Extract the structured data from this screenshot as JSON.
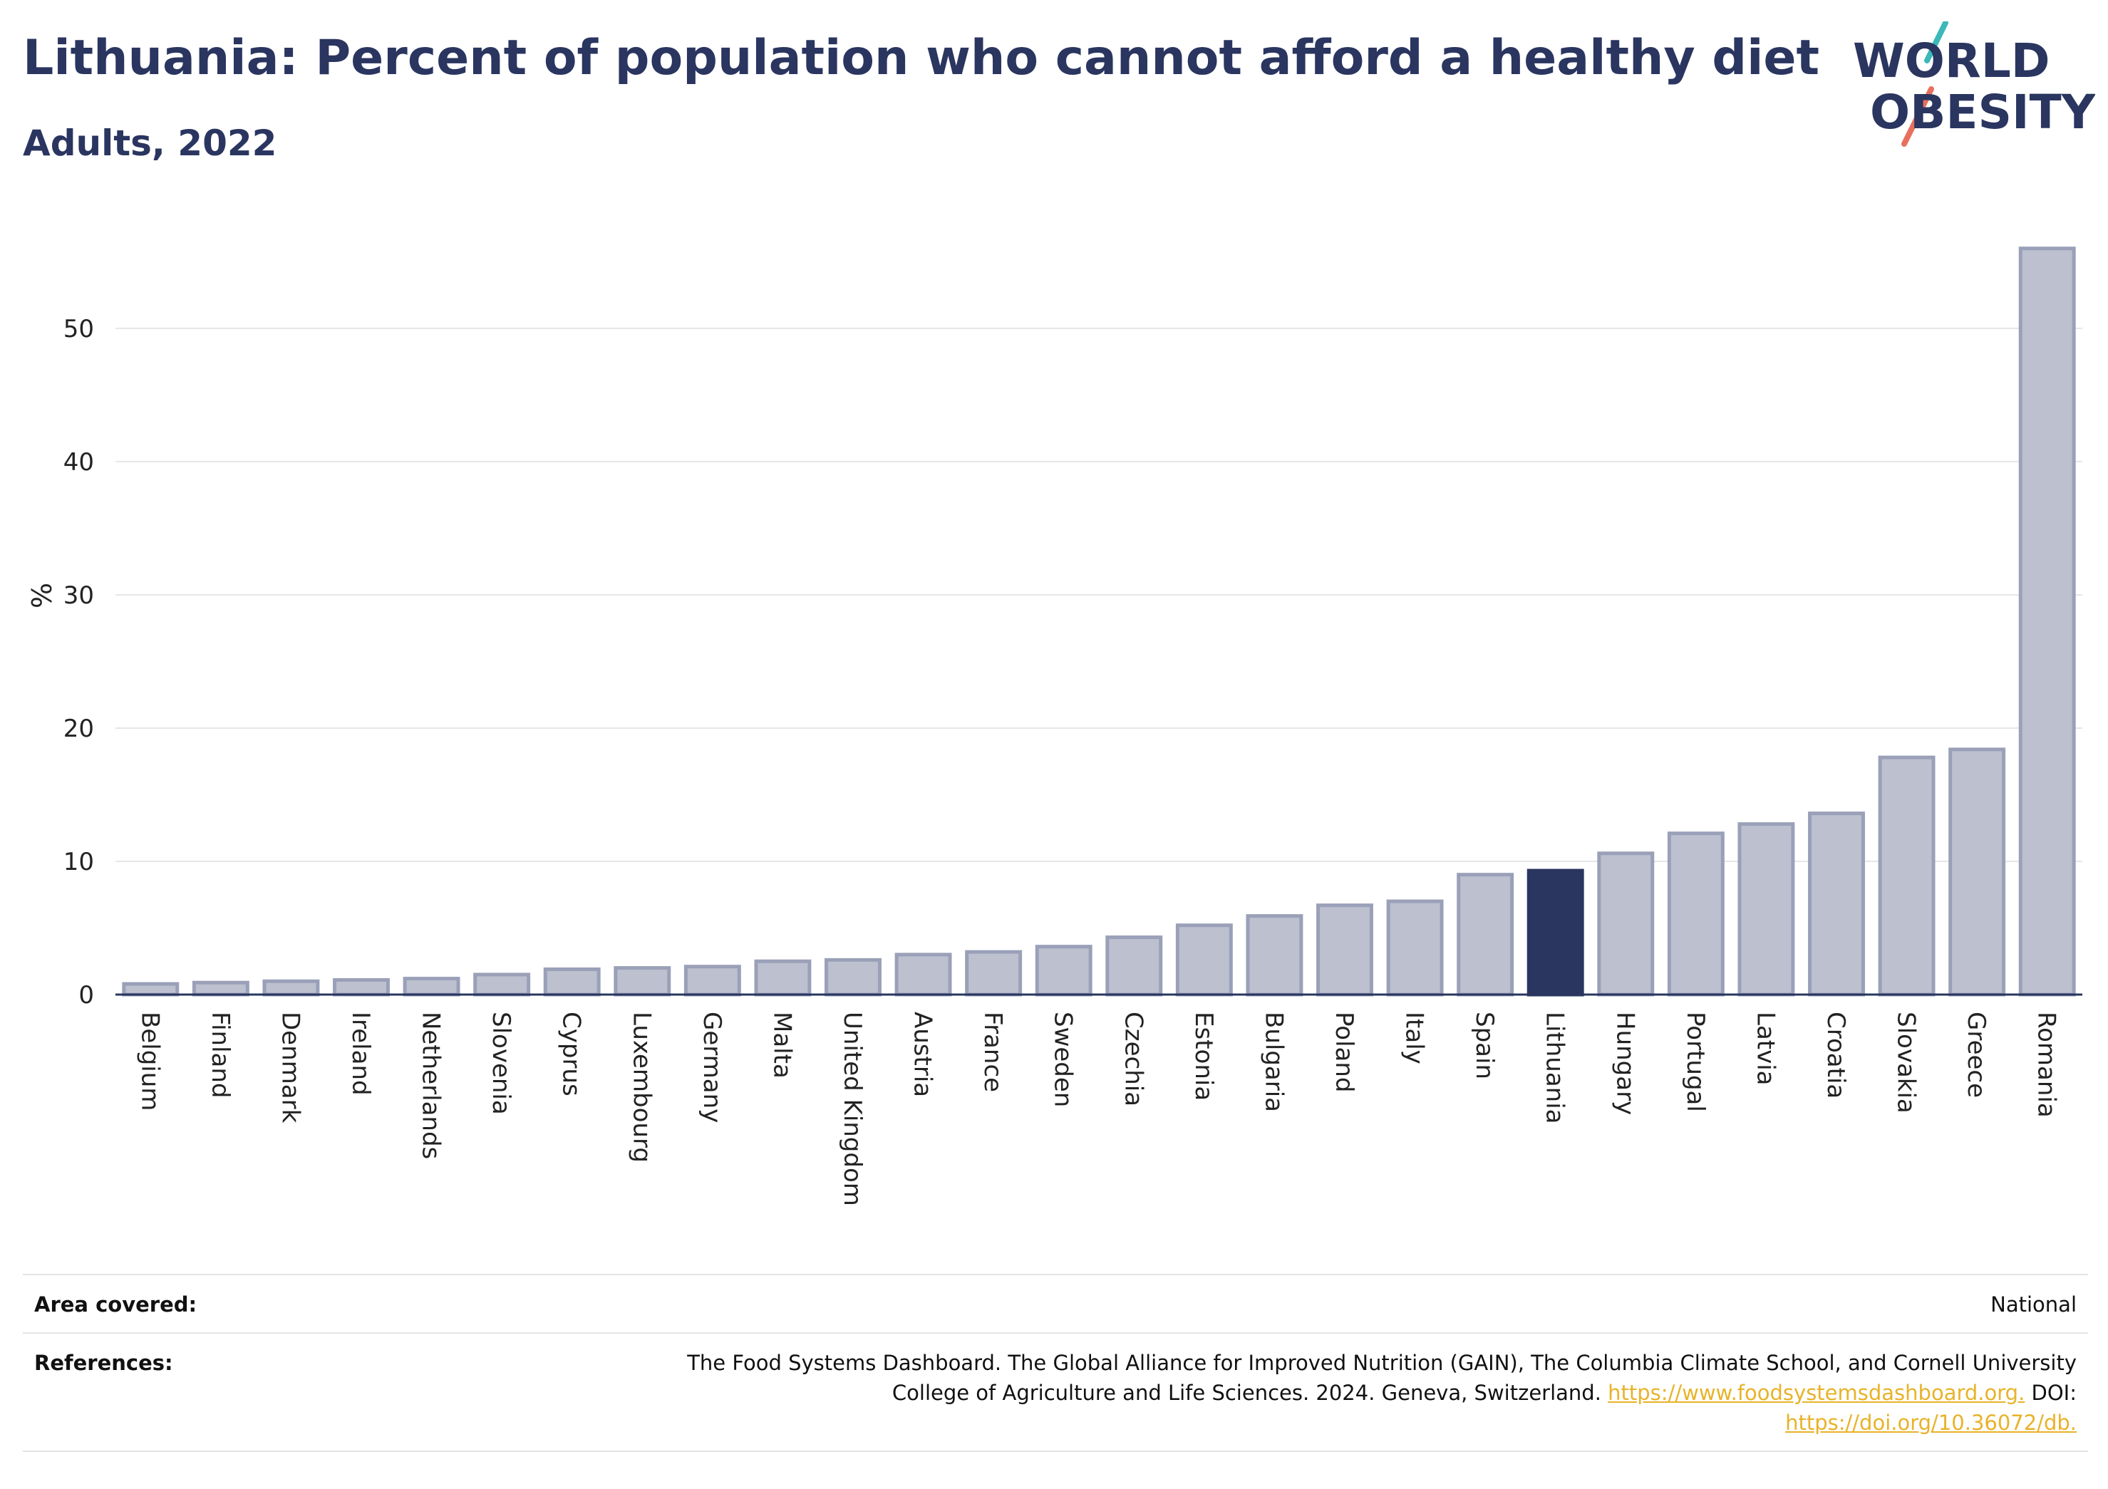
{
  "header": {
    "title": "Lithuania: Percent of population who cannot afford a healthy diet",
    "subtitle": "Adults, 2022"
  },
  "logo": {
    "line1": "WORLD",
    "line2": "OBESITY",
    "accent_teal": "#3bb8b8",
    "accent_coral": "#e8705c",
    "text_color": "#2a3560"
  },
  "chart_data": {
    "type": "bar",
    "ylabel": "%",
    "xlabel": "",
    "ylim": [
      0,
      57
    ],
    "yticks": [
      0,
      10,
      20,
      30,
      40,
      50
    ],
    "grid": true,
    "highlight": "Lithuania",
    "colors": {
      "bar": "#bcc0cf",
      "bar_edge": "#9aa0b8",
      "highlight": "#2a3560",
      "axis": "#2a3560",
      "grid": "#e6e6e6"
    },
    "categories": [
      "Belgium",
      "Finland",
      "Denmark",
      "Ireland",
      "Netherlands",
      "Slovenia",
      "Cyprus",
      "Luxembourg",
      "Germany",
      "Malta",
      "United Kingdom",
      "Austria",
      "France",
      "Sweden",
      "Czechia",
      "Estonia",
      "Bulgaria",
      "Poland",
      "Italy",
      "Spain",
      "Lithuania",
      "Hungary",
      "Portugal",
      "Latvia",
      "Croatia",
      "Slovakia",
      "Greece",
      "Romania"
    ],
    "values": [
      0.8,
      0.9,
      1.0,
      1.1,
      1.2,
      1.5,
      1.9,
      2.0,
      2.1,
      2.5,
      2.6,
      3.0,
      3.2,
      3.6,
      4.3,
      5.2,
      5.9,
      6.7,
      7.0,
      9.0,
      9.3,
      10.6,
      12.1,
      12.8,
      13.6,
      17.8,
      18.4,
      56.0
    ]
  },
  "info": {
    "area_label": "Area covered:",
    "area_value": "National",
    "refs_label": "References:",
    "refs_line1": "The Food Systems Dashboard. The Global Alliance for Improved Nutrition (GAIN), The Columbia Climate School, and Cornell University",
    "refs_line2_text": "College of Agriculture and Life Sciences. 2024. Geneva, Switzerland.",
    "refs_link1": "https://www.foodsystemsdashboard.org.",
    "refs_doi_label": "DOI:",
    "refs_link2": "https://doi.org/10.36072/db."
  }
}
